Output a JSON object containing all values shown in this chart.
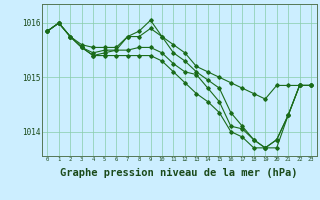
{
  "background_color": "#cceeff",
  "plot_bg_color": "#cceeff",
  "line_color": "#1a6b1a",
  "grid_color": "#88ccaa",
  "xlabel": "Graphe pression niveau de la mer (hPa)",
  "xlabel_fontsize": 7.5,
  "yticks": [
    1014,
    1015,
    1016
  ],
  "xticks": [
    0,
    1,
    2,
    3,
    4,
    5,
    6,
    7,
    8,
    9,
    10,
    11,
    12,
    13,
    14,
    15,
    16,
    17,
    18,
    19,
    20,
    21,
    22,
    23
  ],
  "ylim": [
    1013.55,
    1016.35
  ],
  "xlim": [
    -0.5,
    23.5
  ],
  "series": [
    [
      1015.85,
      1016.0,
      1015.75,
      1015.6,
      1015.55,
      1015.55,
      1015.55,
      1015.75,
      1015.75,
      1015.9,
      1015.75,
      1015.6,
      1015.45,
      1015.2,
      1015.1,
      1015.0,
      1014.9,
      1014.8,
      1014.7,
      1014.6,
      1014.85,
      1014.85,
      1014.85,
      1014.85
    ],
    [
      1015.85,
      1016.0,
      1015.75,
      1015.55,
      1015.45,
      1015.5,
      1015.5,
      1015.75,
      1015.85,
      1016.05,
      1015.75,
      1015.45,
      1015.3,
      1015.1,
      1014.95,
      1014.8,
      1014.35,
      1014.1,
      1013.85,
      1013.7,
      1013.7,
      1014.3,
      1014.85,
      1014.85
    ],
    [
      1015.85,
      1016.0,
      1015.75,
      1015.55,
      1015.4,
      1015.45,
      1015.5,
      1015.5,
      1015.55,
      1015.55,
      1015.45,
      1015.25,
      1015.1,
      1015.05,
      1014.8,
      1014.55,
      1014.1,
      1014.05,
      1013.85,
      1013.7,
      1013.85,
      1014.3,
      1014.85,
      1014.85
    ],
    [
      1015.85,
      1016.0,
      1015.75,
      1015.55,
      1015.4,
      1015.4,
      1015.4,
      1015.4,
      1015.4,
      1015.4,
      1015.3,
      1015.1,
      1014.9,
      1014.7,
      1014.55,
      1014.35,
      1014.0,
      1013.9,
      1013.7,
      1013.7,
      1013.85,
      1014.3,
      1014.85,
      1014.85
    ]
  ]
}
